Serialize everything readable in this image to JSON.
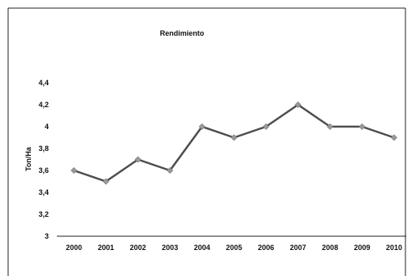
{
  "chart_data": {
    "type": "line",
    "title": "Rendimiento",
    "xlabel": "",
    "ylabel": "Ton/Ha",
    "categories": [
      "2000",
      "2001",
      "2002",
      "2003",
      "2004",
      "2005",
      "2006",
      "2007",
      "2008",
      "2009",
      "2010"
    ],
    "series": [
      {
        "values": [
          3.6,
          3.5,
          3.7,
          3.6,
          4.0,
          3.9,
          4.0,
          4.2,
          4.0,
          4.0,
          3.9
        ]
      }
    ],
    "ylim": [
      3,
      4.4
    ],
    "yticks": [
      "3",
      "3,2",
      "3,4",
      "3,6",
      "3,8",
      "4",
      "4,2",
      "4,4"
    ],
    "ytick_values": [
      3,
      3.2,
      3.4,
      3.6,
      3.8,
      4.0,
      4.2,
      4.4
    ],
    "grid": false,
    "line_color": "#4d4d4d",
    "marker_color": "#9a9a9a"
  }
}
